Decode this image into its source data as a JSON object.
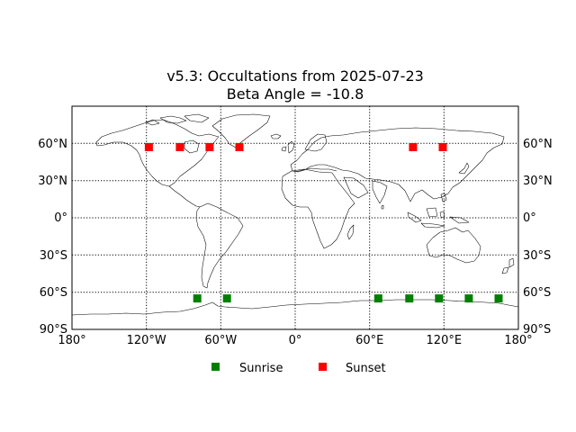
{
  "title": {
    "line1": "v5.3: Occultations from 2025-07-23",
    "line2": "Beta Angle = -10.8"
  },
  "map": {
    "projection": "equirectangular",
    "lon_range": [
      -180,
      180
    ],
    "lat_range": [
      -90,
      90
    ],
    "grid": true,
    "grid_style": "dotted",
    "meridians": [
      -120,
      -60,
      0,
      60,
      120
    ],
    "parallels": [
      -60,
      -30,
      0,
      30,
      60
    ]
  },
  "axes": {
    "left_labels": [
      "60°N",
      "30°N",
      "0°",
      "30°S",
      "60°S",
      "90°S"
    ],
    "right_labels": [
      "60°N",
      "30°N",
      "0°",
      "30°S",
      "60°S",
      "90°S"
    ],
    "bottom_labels": [
      "180°",
      "120°W",
      "60°W",
      "0°",
      "60°E",
      "120°E",
      "180°"
    ]
  },
  "colors": {
    "sunrise": "#008000",
    "sunset": "#ff0000",
    "coast": "#000000"
  },
  "chart_data": {
    "type": "scatter",
    "title": "v5.3: Occultations from 2025-07-23\nBeta Angle = -10.8",
    "x_units": "longitude (deg)",
    "y_units": "latitude (deg)",
    "xlim": [
      -180,
      180
    ],
    "ylim": [
      -90,
      90
    ],
    "legend_position": "bottom-center",
    "series": [
      {
        "name": "Sunrise",
        "color": "#008000",
        "points": [
          [
            -79,
            -65
          ],
          [
            -55,
            -65
          ],
          [
            67,
            -65
          ],
          [
            92,
            -65
          ],
          [
            116,
            -65
          ],
          [
            140,
            -65
          ],
          [
            164,
            -65
          ]
        ]
      },
      {
        "name": "Sunset",
        "color": "#ff0000",
        "points": [
          [
            -118,
            57
          ],
          [
            -93,
            57
          ],
          [
            -69,
            57
          ],
          [
            -45,
            57
          ],
          [
            95,
            57
          ],
          [
            119,
            57
          ]
        ]
      }
    ]
  },
  "legend": {
    "items": [
      {
        "label": "Sunrise",
        "color": "#008000"
      },
      {
        "label": "Sunset",
        "color": "#ff0000"
      }
    ]
  }
}
